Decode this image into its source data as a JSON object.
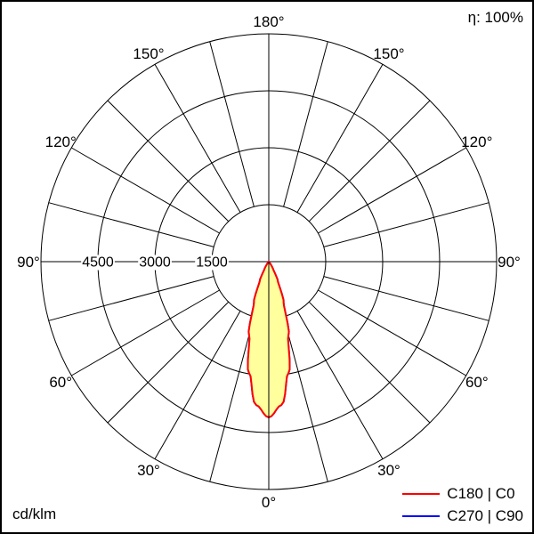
{
  "header": {
    "efficiency_label": "η: 100%"
  },
  "footer": {
    "unit_label": "cd/klm"
  },
  "legend": {
    "items": [
      {
        "label": "C180 | C0",
        "color": "#ff0000"
      },
      {
        "label": "C270 | C90",
        "color": "#0000ff"
      }
    ]
  },
  "chart_data": {
    "type": "polar",
    "description": "Luminous intensity distribution curve (photometric polar diagram)",
    "unit": "cd/klm",
    "efficiency_percent": 100,
    "rings_cd_per_klm": [
      1500,
      3000,
      4500
    ],
    "ring_labels": [
      "4500",
      "3000",
      "1500"
    ],
    "outer_ring_cd_per_klm": 6000,
    "spoke_step_deg": 15,
    "angle_label_step_deg": 30,
    "angle_labels": [
      "0°",
      "30°",
      "60°",
      "90°",
      "120°",
      "150°",
      "180°"
    ],
    "grid_color": "#000000",
    "beam_fill_color": "#ffff9e",
    "legend_position": "bottom-right",
    "series": [
      {
        "name": "C180 | C0",
        "color": "#ff0000",
        "symmetric": true,
        "gamma_deg": [
          0,
          5,
          10,
          15,
          20,
          25,
          30,
          35,
          40,
          45
        ],
        "cd_per_klm": [
          4100,
          3790,
          2980,
          2000,
          1140,
          560,
          230,
          80,
          20,
          0
        ]
      },
      {
        "name": "C270 | C90",
        "color": "#0000ff",
        "symmetric": true,
        "gamma_deg": [
          0,
          5,
          10,
          15,
          20,
          25,
          30,
          35,
          40,
          45
        ],
        "cd_per_klm": [
          4100,
          3790,
          2980,
          2000,
          1140,
          560,
          230,
          80,
          20,
          0
        ]
      }
    ]
  }
}
